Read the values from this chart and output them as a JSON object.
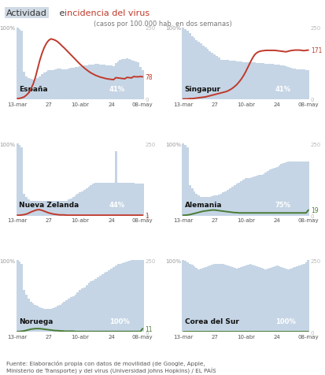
{
  "title1": "Actividad",
  "title2": " e ",
  "title3": "incidencia del virus",
  "subtitle": "(casos por 100.000 hab. en dos semanas)",
  "footer": "Fuente: Elaboración propia con datos de movilidad (de Google, Apple,\nMinisterio de Transporte) y del virus (Universidad Johns Hopkins) / EL PAÍS",
  "x_labels": [
    "13-mar",
    "27",
    "10-abr",
    "24",
    "08-may"
  ],
  "countries": [
    "España",
    "Singapur",
    "Nueva Zelanda",
    "Alemania",
    "Noruega",
    "Corea del Sur"
  ],
  "activity_pct": [
    "41%",
    "41%",
    "44%",
    "75%",
    "100%",
    "100%"
  ],
  "virus_end": [
    78,
    171,
    1,
    19,
    11,
    0
  ],
  "line_colors": [
    "#c0392b",
    "#c0392b",
    "#c0392b",
    "#4a7c35",
    "#4a7c35",
    "#4a7c35"
  ],
  "bar_color": "#c5d5e5",
  "bg_color": "#ffffff",
  "title_activity_bg": "#c8d4e0",
  "title_activity_color": "#333333",
  "title_virus_color": "#c0392b",
  "n_points": 57,
  "tick_positions": [
    0,
    14,
    28,
    42,
    56
  ],
  "activity_data": {
    "España": [
      100,
      98,
      95,
      38,
      32,
      30,
      28,
      27,
      28,
      30,
      32,
      35,
      37,
      38,
      40,
      40,
      40,
      42,
      43,
      43,
      42,
      42,
      42,
      43,
      44,
      44,
      45,
      45,
      46,
      46,
      47,
      47,
      48,
      48,
      48,
      49,
      49,
      48,
      48,
      48,
      47,
      47,
      47,
      46,
      50,
      53,
      55,
      56,
      56,
      57,
      56,
      55,
      54,
      53,
      51,
      45,
      41
    ],
    "Singapur": [
      100,
      98,
      95,
      92,
      88,
      85,
      82,
      80,
      78,
      75,
      72,
      70,
      67,
      65,
      62,
      60,
      58,
      55,
      55,
      55,
      55,
      54,
      54,
      54,
      53,
      53,
      53,
      52,
      52,
      52,
      51,
      51,
      51,
      50,
      50,
      50,
      50,
      49,
      49,
      49,
      49,
      48,
      48,
      48,
      47,
      47,
      46,
      45,
      44,
      43,
      43,
      42,
      42,
      42,
      42,
      41,
      41
    ],
    "Nueva Zelanda": [
      100,
      98,
      95,
      30,
      26,
      22,
      20,
      20,
      20,
      20,
      20,
      20,
      20,
      20,
      20,
      20,
      20,
      20,
      20,
      20,
      20,
      20,
      20,
      22,
      24,
      26,
      28,
      30,
      32,
      34,
      36,
      38,
      40,
      42,
      44,
      46,
      46,
      46,
      46,
      46,
      46,
      46,
      46,
      46,
      90,
      46,
      46,
      46,
      46,
      46,
      46,
      46,
      46,
      44,
      44,
      44,
      44
    ],
    "Alemania": [
      100,
      98,
      95,
      42,
      38,
      34,
      30,
      28,
      26,
      26,
      26,
      26,
      26,
      27,
      28,
      28,
      29,
      30,
      32,
      34,
      36,
      38,
      40,
      42,
      44,
      46,
      48,
      50,
      52,
      52,
      52,
      53,
      54,
      55,
      56,
      57,
      58,
      60,
      62,
      64,
      65,
      66,
      68,
      70,
      72,
      73,
      74,
      75,
      75,
      75,
      75,
      75,
      75,
      75,
      75,
      75,
      75
    ],
    "Noruega": [
      100,
      98,
      95,
      58,
      52,
      46,
      42,
      40,
      38,
      36,
      34,
      33,
      32,
      32,
      32,
      32,
      33,
      34,
      36,
      38,
      40,
      42,
      44,
      46,
      48,
      50,
      52,
      55,
      58,
      60,
      62,
      65,
      68,
      70,
      72,
      74,
      76,
      78,
      80,
      82,
      84,
      86,
      88,
      90,
      92,
      94,
      95,
      96,
      97,
      98,
      99,
      100,
      100,
      100,
      100,
      100,
      100
    ],
    "Corea del Sur": [
      100,
      99,
      97,
      95,
      93,
      91,
      89,
      87,
      88,
      89,
      90,
      91,
      92,
      93,
      94,
      95,
      95,
      95,
      94,
      93,
      92,
      91,
      90,
      89,
      88,
      89,
      90,
      91,
      92,
      93,
      94,
      93,
      92,
      91,
      90,
      89,
      88,
      87,
      88,
      89,
      90,
      91,
      92,
      91,
      90,
      89,
      88,
      87,
      88,
      89,
      90,
      91,
      92,
      93,
      95,
      97,
      100
    ]
  },
  "virus_data": {
    "España": [
      2,
      3,
      5,
      8,
      14,
      22,
      35,
      52,
      75,
      105,
      135,
      160,
      180,
      195,
      205,
      210,
      208,
      205,
      200,
      193,
      185,
      178,
      170,
      162,
      154,
      146,
      138,
      130,
      122,
      115,
      108,
      102,
      96,
      91,
      87,
      83,
      80,
      77,
      75,
      73,
      71,
      70,
      69,
      68,
      75,
      74,
      73,
      72,
      71,
      76,
      75,
      74,
      79,
      78,
      78,
      79,
      78
    ],
    "Singapur": [
      1,
      1,
      1,
      2,
      2,
      3,
      4,
      5,
      6,
      7,
      8,
      10,
      12,
      14,
      16,
      18,
      20,
      22,
      24,
      26,
      29,
      33,
      38,
      44,
      51,
      60,
      70,
      82,
      96,
      112,
      128,
      143,
      155,
      162,
      166,
      168,
      169,
      170,
      170,
      170,
      170,
      170,
      169,
      168,
      167,
      166,
      165,
      167,
      169,
      170,
      171,
      171,
      171,
      170,
      169,
      170,
      171
    ],
    "Nueva Zelanda": [
      1,
      1,
      2,
      3,
      5,
      8,
      12,
      15,
      18,
      20,
      20,
      18,
      15,
      12,
      9,
      7,
      5,
      4,
      3,
      2,
      2,
      2,
      1,
      1,
      1,
      1,
      1,
      1,
      1,
      1,
      1,
      1,
      1,
      1,
      1,
      1,
      1,
      1,
      1,
      1,
      1,
      1,
      1,
      1,
      1,
      1,
      1,
      1,
      1,
      1,
      1,
      1,
      1,
      1,
      1,
      1,
      1
    ],
    "Alemania": [
      1,
      1,
      2,
      3,
      5,
      7,
      9,
      11,
      13,
      15,
      16,
      17,
      18,
      19,
      19,
      18,
      17,
      16,
      15,
      14,
      13,
      12,
      11,
      10,
      10,
      9,
      9,
      9,
      9,
      9,
      9,
      9,
      9,
      9,
      9,
      9,
      9,
      9,
      9,
      9,
      9,
      9,
      9,
      9,
      9,
      9,
      9,
      9,
      9,
      9,
      9,
      9,
      9,
      9,
      9,
      9,
      19
    ],
    "Noruega": [
      1,
      1,
      2,
      3,
      5,
      7,
      9,
      10,
      11,
      11,
      11,
      10,
      9,
      8,
      7,
      6,
      5,
      4,
      4,
      3,
      3,
      2,
      2,
      2,
      2,
      2,
      1,
      1,
      1,
      1,
      1,
      1,
      1,
      1,
      1,
      1,
      1,
      1,
      1,
      1,
      1,
      1,
      1,
      1,
      1,
      1,
      1,
      1,
      1,
      1,
      1,
      1,
      1,
      1,
      1,
      1,
      11
    ],
    "Corea del Sur": [
      0,
      0,
      0,
      0,
      0,
      0,
      0,
      0,
      0,
      0,
      0,
      0,
      0,
      0,
      0,
      0,
      0,
      0,
      0,
      0,
      0,
      0,
      0,
      0,
      0,
      0,
      0,
      0,
      0,
      0,
      0,
      0,
      0,
      0,
      0,
      0,
      0,
      0,
      0,
      0,
      0,
      0,
      0,
      0,
      0,
      0,
      0,
      0,
      0,
      0,
      0,
      0,
      0,
      0,
      0,
      0,
      0
    ]
  }
}
